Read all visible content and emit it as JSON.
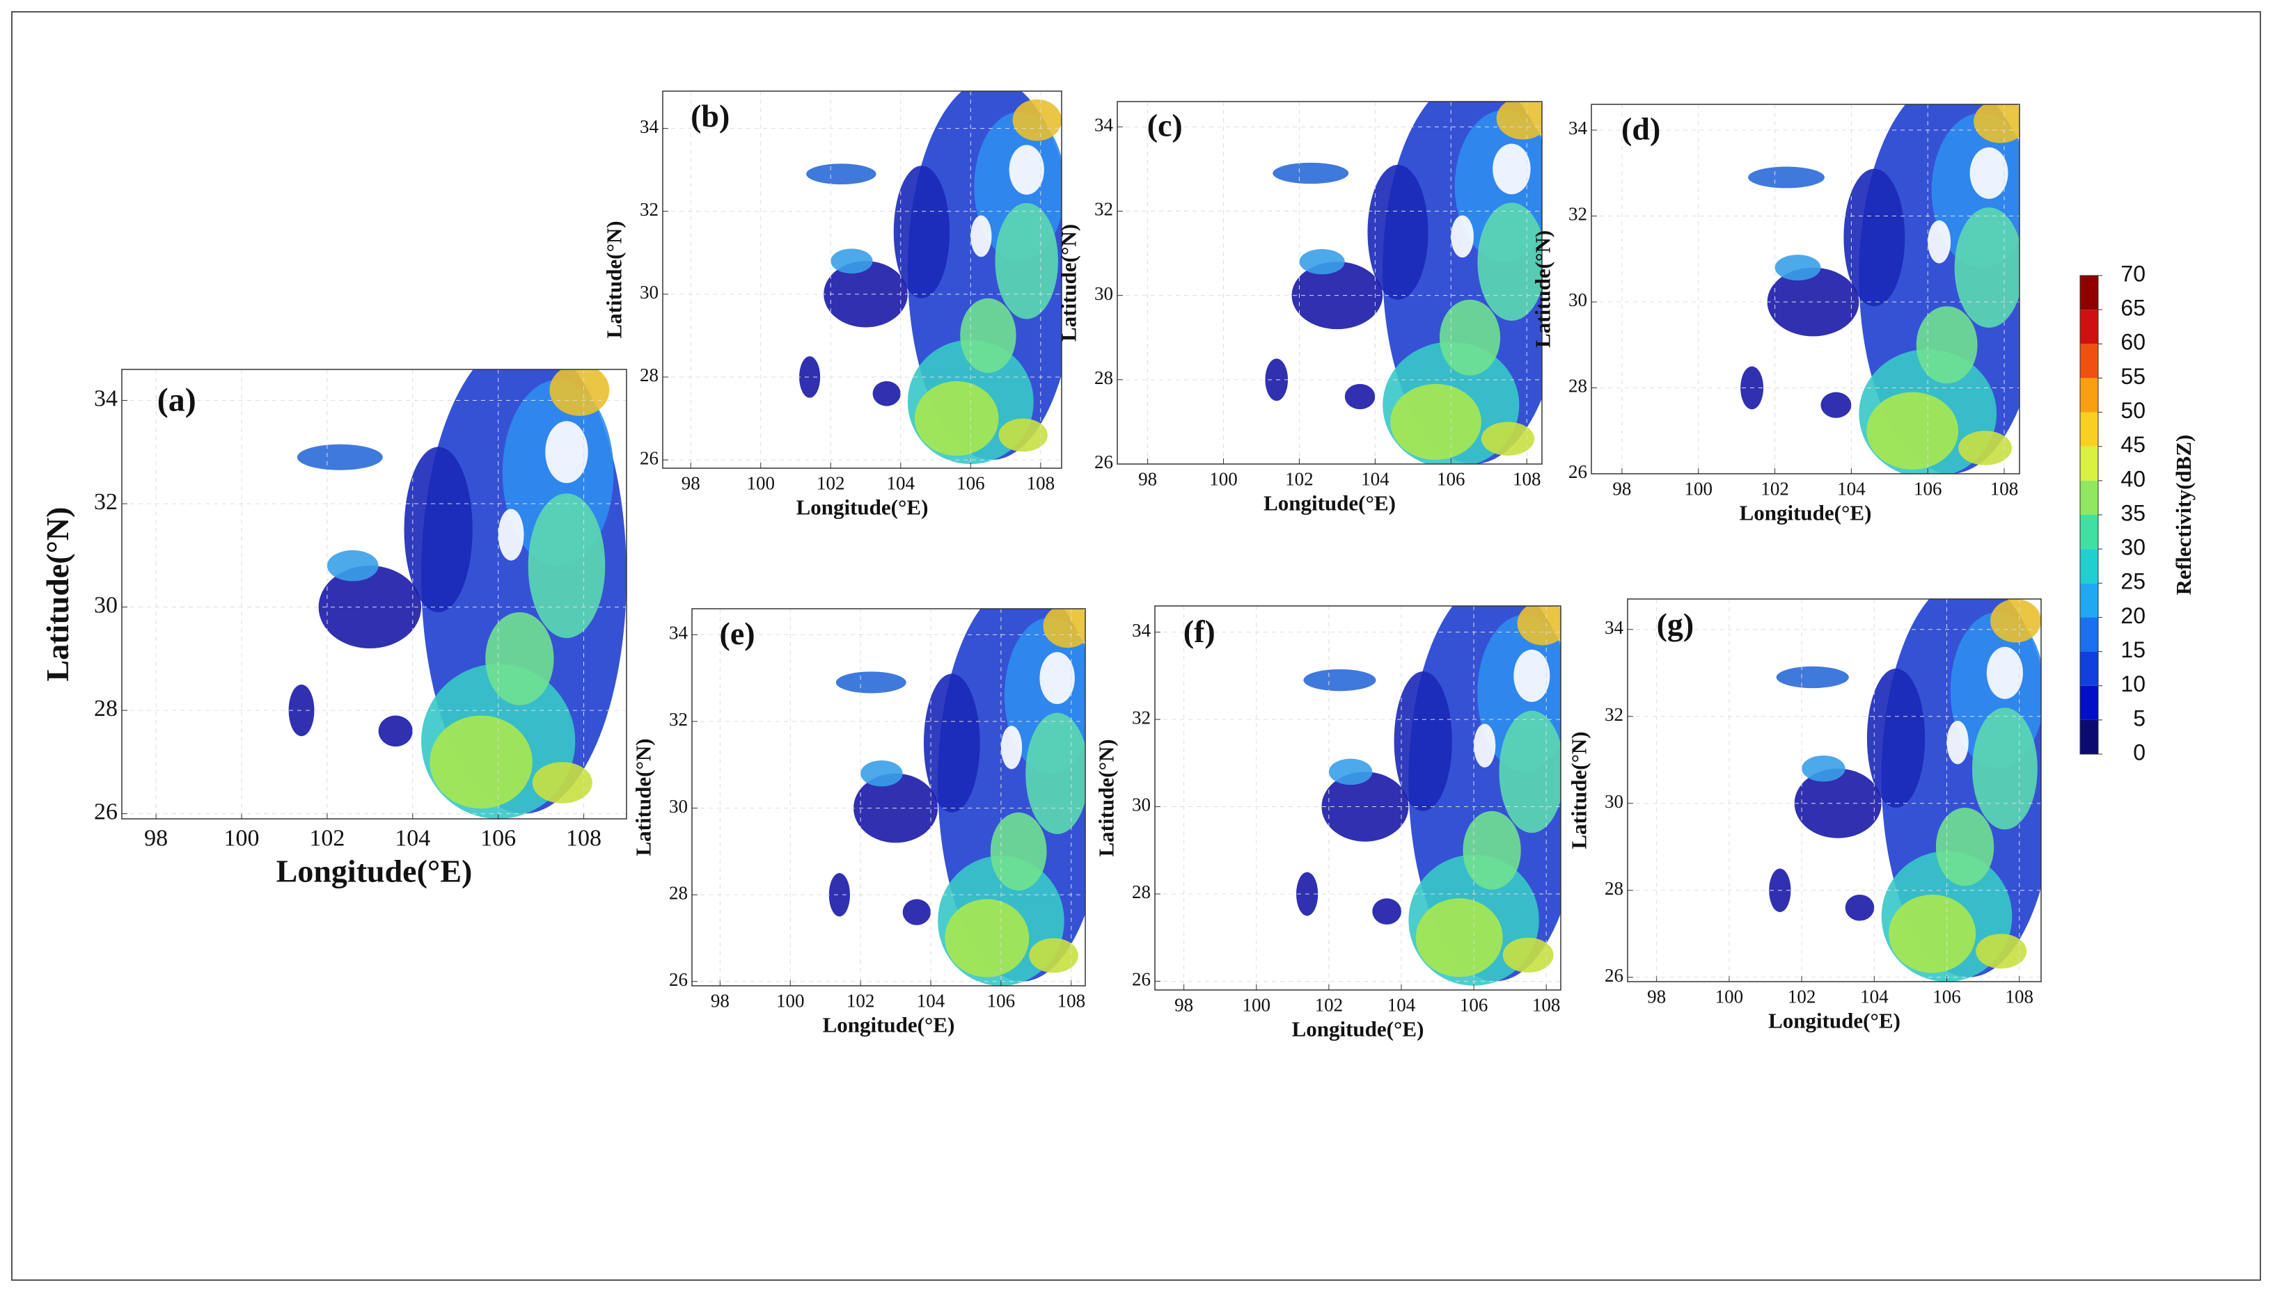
{
  "chart_data": [
    {
      "type": "heatmap",
      "label": "(a)",
      "xlabel": "Longitude(°E)",
      "ylabel": "Latitude(°N)",
      "xlim": [
        97.2,
        109
      ],
      "ylim": [
        25.9,
        34.6
      ],
      "xticks": [
        98,
        100,
        102,
        104,
        106,
        108
      ],
      "yticks": [
        26,
        28,
        30,
        32,
        34
      ],
      "grid": true
    },
    {
      "type": "heatmap",
      "label": "(b)",
      "xlabel": "Longitude(°E)",
      "ylabel": "Latitude(°N)",
      "xlim": [
        97.2,
        108.6
      ],
      "ylim": [
        25.8,
        34.9
      ],
      "xticks": [
        98,
        100,
        102,
        104,
        106,
        108
      ],
      "yticks": [
        26,
        28,
        30,
        32,
        34
      ],
      "grid": true
    },
    {
      "type": "heatmap",
      "label": "(c)",
      "xlabel": "Longitude(°E)",
      "ylabel": "Latitude(°N)",
      "xlim": [
        97.2,
        108.4
      ],
      "ylim": [
        26,
        34.6
      ],
      "xticks": [
        98,
        100,
        102,
        104,
        106,
        108
      ],
      "yticks": [
        26,
        28,
        30,
        32,
        34
      ],
      "grid": true
    },
    {
      "type": "heatmap",
      "label": "(d)",
      "xlabel": "Longitude(°E)",
      "ylabel": "Latitude(°N)",
      "xlim": [
        97.2,
        108.4
      ],
      "ylim": [
        26,
        34.6
      ],
      "xticks": [
        98,
        100,
        102,
        104,
        106,
        108
      ],
      "yticks": [
        26,
        28,
        30,
        32,
        34
      ],
      "grid": true
    },
    {
      "type": "heatmap",
      "label": "(e)",
      "xlabel": "Longitude(°E)",
      "ylabel": "Latitude(°N)",
      "xlim": [
        97.2,
        108.4
      ],
      "ylim": [
        25.9,
        34.6
      ],
      "xticks": [
        98,
        100,
        102,
        104,
        106,
        108
      ],
      "yticks": [
        26,
        28,
        30,
        32,
        34
      ],
      "grid": true
    },
    {
      "type": "heatmap",
      "label": "(f)",
      "xlabel": "Longitude(°E)",
      "ylabel": "Latitude(°N)",
      "xlim": [
        97.2,
        108.4
      ],
      "ylim": [
        25.8,
        34.6
      ],
      "xticks": [
        98,
        100,
        102,
        104,
        106,
        108
      ],
      "yticks": [
        26,
        28,
        30,
        32,
        34
      ],
      "grid": true
    },
    {
      "type": "heatmap",
      "label": "(g)",
      "xlabel": "Longitude(°E)",
      "ylabel": "Latitude(°N)",
      "xlim": [
        97.2,
        108.6
      ],
      "ylim": [
        25.9,
        34.7
      ],
      "xticks": [
        98,
        100,
        102,
        104,
        106,
        108
      ],
      "yticks": [
        26,
        28,
        30,
        32,
        34
      ],
      "grid": true
    },
    {
      "type": "colorbar",
      "title": "Reflectivity(dBZ)",
      "ylim": [
        0,
        70
      ],
      "yticks": [
        0,
        5,
        10,
        15,
        20,
        25,
        30,
        35,
        40,
        45,
        50,
        55,
        60,
        65,
        70
      ],
      "colors": [
        "#0a0a70",
        "#0010c8",
        "#1040e0",
        "#1a70f0",
        "#20a8f0",
        "#20d0d0",
        "#40e0a0",
        "#90e860",
        "#d8f040",
        "#f8d020",
        "#f8a010",
        "#f05010",
        "#d01010",
        "#900000"
      ]
    }
  ]
}
